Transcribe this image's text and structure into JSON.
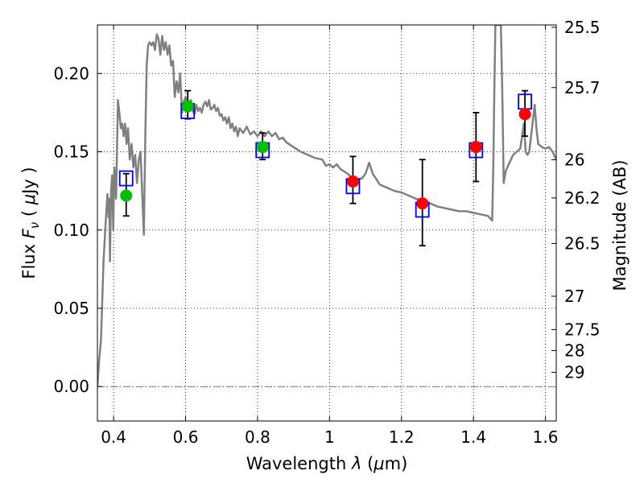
{
  "chart_data": {
    "type": "scatter",
    "xlabel": "Wavelength  λ (μm)",
    "xlabel_parts": {
      "prefix": "Wavelength  ",
      "symbol": "λ",
      "open": " (",
      "mu": "μ",
      "unit": "m)"
    },
    "ylabel": "Flux  Fν  ( μJy )",
    "ylabel_parts": {
      "prefix": "Flux  ",
      "F": "F",
      "nu": "ν",
      "open": "  ( ",
      "mu": "μ",
      "unit": "Jy )"
    },
    "y2label": "Magnitude (AB)",
    "xlim": [
      0.355,
      1.63
    ],
    "ylim": [
      -0.022,
      0.231
    ],
    "grid": true,
    "x_ticks": [
      {
        "v": 0.4,
        "label": "0.4"
      },
      {
        "v": 0.6,
        "label": "0.6"
      },
      {
        "v": 0.8,
        "label": "0.8"
      },
      {
        "v": 1.0,
        "label": "1"
      },
      {
        "v": 1.2,
        "label": "1.2"
      },
      {
        "v": 1.4,
        "label": "1.4"
      },
      {
        "v": 1.6,
        "label": "1.6"
      }
    ],
    "y_ticks": [
      {
        "v": 0.0,
        "label": "0.00"
      },
      {
        "v": 0.05,
        "label": "0.05"
      },
      {
        "v": 0.1,
        "label": "0.10"
      },
      {
        "v": 0.15,
        "label": "0.15"
      },
      {
        "v": 0.2,
        "label": "0.20"
      }
    ],
    "y2_ticks": [
      {
        "mag": 25.5,
        "flux": 0.2295,
        "label": "25.5"
      },
      {
        "mag": 25.7,
        "flux": 0.191,
        "label": "25.7"
      },
      {
        "mag": 26,
        "flux": 0.1449,
        "label": "26"
      },
      {
        "mag": 26.2,
        "flux": 0.1205,
        "label": "26.2"
      },
      {
        "mag": 26.5,
        "flux": 0.0914,
        "label": "26.5"
      },
      {
        "mag": 27,
        "flux": 0.0577,
        "label": "27"
      },
      {
        "mag": 27.5,
        "flux": 0.0364,
        "label": "27.5"
      },
      {
        "mag": 28,
        "flux": 0.023,
        "label": "28"
      },
      {
        "mag": 29,
        "flux": 0.0091,
        "label": "29"
      }
    ],
    "model_spectrum": {
      "color": "#808080",
      "points": [
        [
          0.355,
          0.0
        ],
        [
          0.36,
          0.017
        ],
        [
          0.365,
          0.03
        ],
        [
          0.372,
          0.08
        ],
        [
          0.378,
          0.105
        ],
        [
          0.383,
          0.123
        ],
        [
          0.386,
          0.108
        ],
        [
          0.388,
          0.12
        ],
        [
          0.39,
          0.08
        ],
        [
          0.393,
          0.125
        ],
        [
          0.396,
          0.135
        ],
        [
          0.399,
          0.1
        ],
        [
          0.402,
          0.14
        ],
        [
          0.407,
          0.12
        ],
        [
          0.412,
          0.183
        ],
        [
          0.416,
          0.175
        ],
        [
          0.42,
          0.165
        ],
        [
          0.424,
          0.168
        ],
        [
          0.428,
          0.16
        ],
        [
          0.432,
          0.168
        ],
        [
          0.436,
          0.155
        ],
        [
          0.44,
          0.165
        ],
        [
          0.445,
          0.145
        ],
        [
          0.45,
          0.155
        ],
        [
          0.455,
          0.14
        ],
        [
          0.46,
          0.148
        ],
        [
          0.465,
          0.13
        ],
        [
          0.47,
          0.145
        ],
        [
          0.475,
          0.15
        ],
        [
          0.48,
          0.12
        ],
        [
          0.484,
          0.097
        ],
        [
          0.488,
          0.16
        ],
        [
          0.492,
          0.205
        ],
        [
          0.496,
          0.218
        ],
        [
          0.5,
          0.22
        ],
        [
          0.505,
          0.218
        ],
        [
          0.51,
          0.22
        ],
        [
          0.515,
          0.215
        ],
        [
          0.52,
          0.225
        ],
        [
          0.525,
          0.222
        ],
        [
          0.53,
          0.212
        ],
        [
          0.535,
          0.224
        ],
        [
          0.54,
          0.215
        ],
        [
          0.545,
          0.22
        ],
        [
          0.55,
          0.212
        ],
        [
          0.555,
          0.218
        ],
        [
          0.56,
          0.205
        ],
        [
          0.565,
          0.208
        ],
        [
          0.57,
          0.185
        ],
        [
          0.575,
          0.195
        ],
        [
          0.58,
          0.188
        ],
        [
          0.585,
          0.2
        ],
        [
          0.59,
          0.175
        ],
        [
          0.595,
          0.182
        ],
        [
          0.6,
          0.185
        ],
        [
          0.605,
          0.178
        ],
        [
          0.61,
          0.182
        ],
        [
          0.615,
          0.183
        ],
        [
          0.62,
          0.176
        ],
        [
          0.625,
          0.174
        ],
        [
          0.63,
          0.18
        ],
        [
          0.635,
          0.176
        ],
        [
          0.64,
          0.178
        ],
        [
          0.645,
          0.175
        ],
        [
          0.65,
          0.18
        ],
        [
          0.655,
          0.182
        ],
        [
          0.66,
          0.179
        ],
        [
          0.665,
          0.183
        ],
        [
          0.67,
          0.177
        ],
        [
          0.675,
          0.178
        ],
        [
          0.68,
          0.18
        ],
        [
          0.685,
          0.176
        ],
        [
          0.69,
          0.178
        ],
        [
          0.695,
          0.173
        ],
        [
          0.7,
          0.174
        ],
        [
          0.705,
          0.17
        ],
        [
          0.71,
          0.172
        ],
        [
          0.715,
          0.168
        ],
        [
          0.72,
          0.172
        ],
        [
          0.725,
          0.165
        ],
        [
          0.73,
          0.168
        ],
        [
          0.735,
          0.163
        ],
        [
          0.74,
          0.166
        ],
        [
          0.745,
          0.16
        ],
        [
          0.75,
          0.165
        ],
        [
          0.76,
          0.162
        ],
        [
          0.77,
          0.166
        ],
        [
          0.78,
          0.161
        ],
        [
          0.79,
          0.163
        ],
        [
          0.8,
          0.16
        ],
        [
          0.81,
          0.163
        ],
        [
          0.82,
          0.16
        ],
        [
          0.83,
          0.163
        ],
        [
          0.84,
          0.16
        ],
        [
          0.85,
          0.162
        ],
        [
          0.86,
          0.158
        ],
        [
          0.87,
          0.159
        ],
        [
          0.88,
          0.156
        ],
        [
          0.9,
          0.153
        ],
        [
          0.92,
          0.15
        ],
        [
          0.94,
          0.148
        ],
        [
          0.96,
          0.146
        ],
        [
          0.98,
          0.145
        ],
        [
          0.99,
          0.141
        ],
        [
          1.0,
          0.142
        ],
        [
          1.01,
          0.14
        ],
        [
          1.02,
          0.142
        ],
        [
          1.03,
          0.139
        ],
        [
          1.05,
          0.136
        ],
        [
          1.07,
          0.132
        ],
        [
          1.09,
          0.133
        ],
        [
          1.1,
          0.136
        ],
        [
          1.11,
          0.143
        ],
        [
          1.12,
          0.136
        ],
        [
          1.14,
          0.129
        ],
        [
          1.16,
          0.127
        ],
        [
          1.18,
          0.125
        ],
        [
          1.2,
          0.124
        ],
        [
          1.22,
          0.122
        ],
        [
          1.24,
          0.12
        ],
        [
          1.26,
          0.119
        ],
        [
          1.28,
          0.117
        ],
        [
          1.3,
          0.115
        ],
        [
          1.32,
          0.114
        ],
        [
          1.34,
          0.113
        ],
        [
          1.36,
          0.112
        ],
        [
          1.38,
          0.112
        ],
        [
          1.4,
          0.111
        ],
        [
          1.42,
          0.11
        ],
        [
          1.44,
          0.109
        ],
        [
          1.452,
          0.106
        ],
        [
          1.455,
          0.14
        ],
        [
          1.458,
          0.19
        ],
        [
          1.461,
          0.231
        ],
        [
          1.476,
          0.231
        ],
        [
          1.48,
          0.19
        ],
        [
          1.484,
          0.13
        ],
        [
          1.49,
          0.138
        ],
        [
          1.5,
          0.143
        ],
        [
          1.51,
          0.148
        ],
        [
          1.52,
          0.15
        ],
        [
          1.53,
          0.152
        ],
        [
          1.54,
          0.168
        ],
        [
          1.545,
          0.15
        ],
        [
          1.55,
          0.148
        ],
        [
          1.555,
          0.15
        ],
        [
          1.56,
          0.16
        ],
        [
          1.57,
          0.18
        ],
        [
          1.575,
          0.165
        ],
        [
          1.58,
          0.155
        ],
        [
          1.59,
          0.153
        ],
        [
          1.6,
          0.152
        ],
        [
          1.61,
          0.153
        ],
        [
          1.62,
          0.15
        ],
        [
          1.63,
          0.145
        ]
      ]
    },
    "series": [
      {
        "marker": "open-square",
        "color": "#0000ff",
        "points": [
          {
            "x": 0.435,
            "y": 0.133
          },
          {
            "x": 0.606,
            "y": 0.176
          },
          {
            "x": 0.814,
            "y": 0.151
          },
          {
            "x": 1.065,
            "y": 0.128
          },
          {
            "x": 1.258,
            "y": 0.113
          },
          {
            "x": 1.407,
            "y": 0.151
          },
          {
            "x": 1.543,
            "y": 0.182
          }
        ]
      },
      {
        "marker": "circle",
        "color": "#00c000",
        "points": [
          {
            "x": 0.435,
            "y": 0.122,
            "yerr_low": 0.109,
            "yerr_high": 0.136
          },
          {
            "x": 0.606,
            "y": 0.179,
            "yerr_low": 0.171,
            "yerr_high": 0.189
          },
          {
            "x": 0.814,
            "y": 0.153,
            "yerr_low": 0.145,
            "yerr_high": 0.162
          }
        ]
      },
      {
        "marker": "circle",
        "color": "#ff0000",
        "points": [
          {
            "x": 1.065,
            "y": 0.131,
            "yerr_low": 0.117,
            "yerr_high": 0.147
          },
          {
            "x": 1.258,
            "y": 0.117,
            "yerr_low": 0.09,
            "yerr_high": 0.145
          },
          {
            "x": 1.407,
            "y": 0.153,
            "yerr_low": 0.131,
            "yerr_high": 0.175
          },
          {
            "x": 1.543,
            "y": 0.174,
            "yerr_low": 0.16,
            "yerr_high": 0.189
          }
        ]
      }
    ],
    "zero_line": {
      "y": 0.0,
      "style": "dash-dot"
    }
  }
}
